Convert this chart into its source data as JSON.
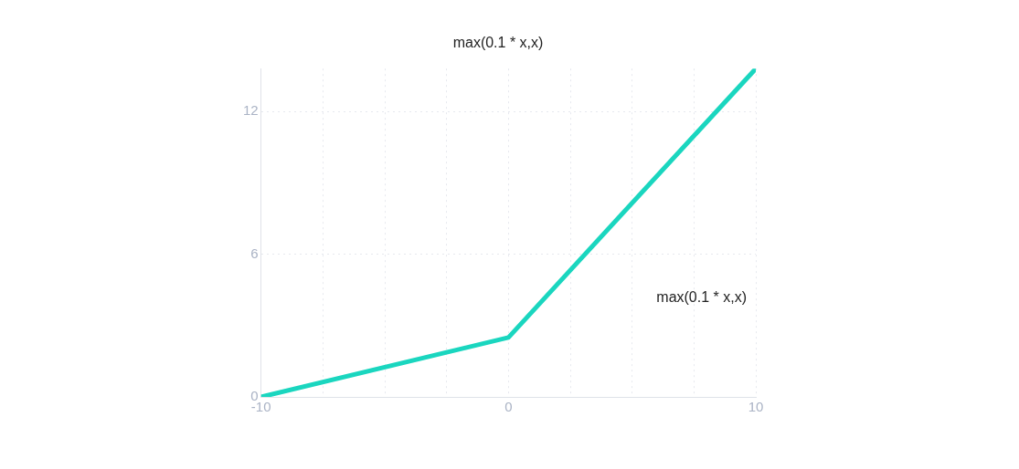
{
  "chart_data": {
    "type": "line",
    "title": "max(0.1 * x,x)",
    "x": [
      -10,
      0,
      10
    ],
    "series": [
      {
        "name": "max(0.1 * x,x)",
        "color": "#1ad6bf",
        "values": [
          0,
          2.5,
          13.8
        ]
      }
    ],
    "xlim": [
      -10,
      10
    ],
    "xticks": [
      -10,
      {
        "value": -7.5,
        "label": null
      },
      {
        "value": -5,
        "label": null
      },
      {
        "value": -2.5,
        "label": null
      },
      0,
      {
        "value": 2.5,
        "label": null
      },
      {
        "value": 5,
        "label": null
      },
      {
        "value": 7.5,
        "label": null
      },
      10
    ],
    "ylim": [
      0,
      13.8
    ],
    "yticks": [
      0,
      6,
      12
    ],
    "grid": true,
    "legend": false,
    "marker": "none",
    "line_style": "solid"
  }
}
